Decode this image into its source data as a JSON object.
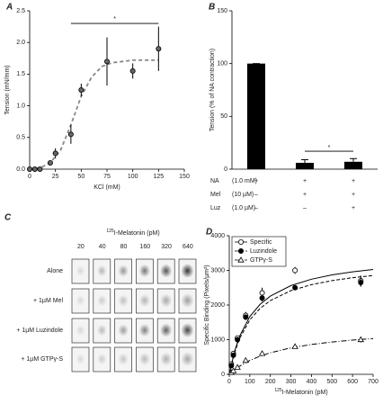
{
  "chart_data": [
    {
      "type": "scatter",
      "label": "A",
      "xlabel": "KCl (mM)",
      "ylabel": "Tension (mN/mm)",
      "xlim": [
        0,
        150
      ],
      "xticks": [
        0,
        25,
        50,
        75,
        100,
        125,
        150
      ],
      "ylim": [
        0,
        2.5
      ],
      "yticks": [
        {
          "value": 0,
          "label": "0.0"
        },
        {
          "value": 0.5,
          "label": "0.5"
        },
        {
          "value": 1,
          "label": "1.0"
        },
        {
          "value": 1.5,
          "label": "1.5"
        },
        {
          "value": 2,
          "label": "2.0"
        },
        {
          "value": 2.5,
          "label": "2.5"
        }
      ],
      "series": [
        {
          "marker": "circle",
          "color": "#666666",
          "x": [
            0,
            5,
            10,
            20,
            25,
            40,
            50,
            75,
            100,
            125
          ],
          "values": [
            0,
            0,
            0,
            0.1,
            0.25,
            0.55,
            1.25,
            1.7,
            1.55,
            1.9
          ],
          "errors": [
            0,
            0,
            0,
            0.03,
            0.08,
            0.15,
            0.1,
            0.38,
            0.12,
            0.35
          ],
          "fit_x": [
            0,
            10,
            20,
            30,
            40,
            50,
            60,
            70,
            80,
            90,
            100,
            110,
            120,
            125
          ],
          "fit_values": [
            0,
            0.02,
            0.1,
            0.3,
            0.7,
            1.15,
            1.45,
            1.62,
            1.68,
            1.7,
            1.72,
            1.72,
            1.72,
            1.72
          ],
          "fit_color": "#888888",
          "fit_dash": "4,3"
        }
      ],
      "significance": {
        "x": [
          40,
          125
        ],
        "y": 2.3,
        "label": "*"
      }
    },
    {
      "type": "bar",
      "label": "B",
      "ylabel": "Tension (% of NA contraction)",
      "ylim": [
        0,
        150
      ],
      "yticks": [
        0,
        50,
        100,
        150
      ],
      "categories": [
        null,
        null,
        null
      ],
      "values": [
        100,
        6,
        7
      ],
      "errors": [
        0,
        3,
        3
      ],
      "color": "#000000",
      "bracket": {
        "from": 1,
        "to": 2,
        "y": 17,
        "label": "*"
      },
      "conditions": [
        {
          "name": "NA",
          "dose": "(1.0 mM)",
          "signs": [
            "+",
            "+",
            "+"
          ]
        },
        {
          "name": "Mel",
          "dose": "(10 µM)",
          "signs": [
            "–",
            "+",
            "+"
          ]
        },
        {
          "name": "Luz",
          "dose": "(1.0 µM)",
          "signs": [
            "–",
            "–",
            "+"
          ]
        }
      ]
    },
    {
      "type": "scatter",
      "label": "D",
      "xlabel_sup": "125",
      "xlabel": "I-Melatonin (pM)",
      "ylabel": "Specific Binding (Pixels/µm²)",
      "xlim": [
        0,
        700
      ],
      "xticks": [
        0,
        100,
        200,
        300,
        400,
        500,
        600,
        700
      ],
      "ylim": [
        0,
        4000
      ],
      "yticks": [
        0,
        1000,
        2000,
        3000,
        4000
      ],
      "legend": "upper left",
      "series": [
        {
          "name": "Specific",
          "marker": "circle-open",
          "color": "#000000",
          "x": [
            10,
            20,
            40,
            80,
            160,
            320,
            640
          ],
          "values": [
            300,
            600,
            1050,
            1700,
            2350,
            3000,
            2700
          ],
          "errors": [
            0,
            50,
            50,
            100,
            150,
            100,
            150
          ],
          "fit_x": [
            0,
            25,
            50,
            100,
            150,
            200,
            300,
            400,
            500,
            600,
            700
          ],
          "fit_values": [
            0,
            648,
            1094,
            1667,
            2019,
            2258,
            2561,
            2745,
            2869,
            2958,
            3025
          ],
          "fit_color": "#000000",
          "fit_dash": "none"
        },
        {
          "name": "Luzindole",
          "marker": "circle",
          "color": "#000000",
          "x": [
            10,
            20,
            40,
            80,
            160,
            320,
            640
          ],
          "values": [
            250,
            550,
            1000,
            1650,
            2200,
            2500,
            2650
          ],
          "errors": [
            0,
            40,
            50,
            80,
            100,
            60,
            120
          ],
          "fit_x": [
            0,
            25,
            50,
            100,
            150,
            200,
            300,
            400,
            500,
            600,
            700
          ],
          "fit_values": [
            0,
            611,
            1031,
            1571,
            1904,
            2129,
            2415,
            2588,
            2705,
            2789,
            2852
          ],
          "fit_color": "#000000",
          "fit_dash": "4,2"
        },
        {
          "name": "GTPγ-S",
          "marker": "triangle-open",
          "color": "#000000",
          "x": [
            10,
            20,
            40,
            80,
            160,
            320,
            640
          ],
          "values": [
            50,
            100,
            200,
            400,
            600,
            800,
            1000
          ],
          "errors": [
            0,
            20,
            30,
            40,
            50,
            60,
            80
          ],
          "fit_x": [
            0,
            25,
            50,
            100,
            150,
            200,
            300,
            400,
            500,
            600,
            700
          ],
          "fit_values": [
            0,
            127,
            233,
            400,
            525,
            622,
            764,
            862,
            933,
            988,
            1031
          ],
          "fit_color": "#000000",
          "fit_dash": "6,2,1,2"
        }
      ]
    }
  ],
  "blot": {
    "label": "C",
    "title_sup": "125",
    "title": "I-Melatonin (pM)",
    "columns": [
      "20",
      "40",
      "80",
      "160",
      "320",
      "640"
    ],
    "rows": [
      "Alone",
      "+ 1µM Mel",
      "+ 1µM Luzindole",
      "+ 1µM GTPγ-S"
    ]
  }
}
